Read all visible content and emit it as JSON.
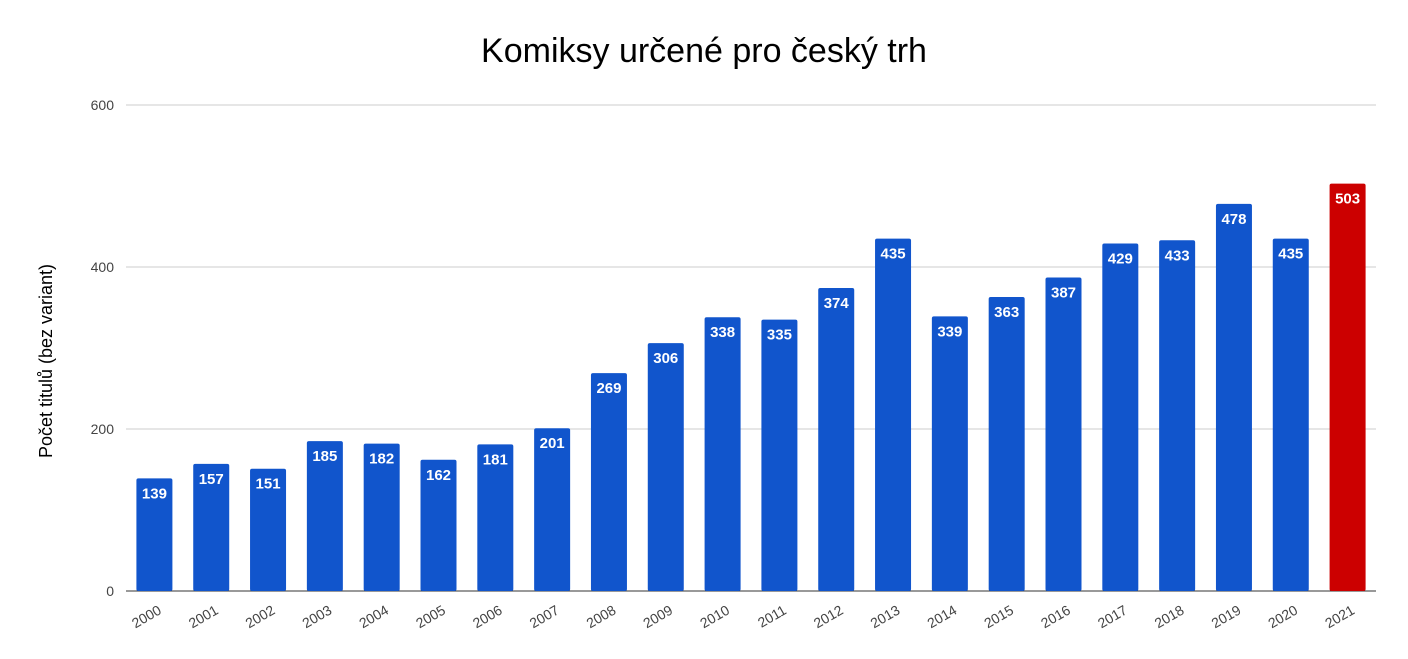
{
  "chart_data": {
    "type": "bar",
    "title": "Komiksy určené pro český trh",
    "xlabel": "",
    "ylabel": "Počet titulů (bez variant)",
    "ylim": [
      0,
      600
    ],
    "yticks": [
      0,
      200,
      400,
      600
    ],
    "grid": true,
    "legend": "none",
    "categories": [
      "2000",
      "2001",
      "2002",
      "2003",
      "2004",
      "2005",
      "2006",
      "2007",
      "2008",
      "2009",
      "2010",
      "2011",
      "2012",
      "2013",
      "2014",
      "2015",
      "2016",
      "2017",
      "2018",
      "2019",
      "2020",
      "2021"
    ],
    "values": [
      139,
      157,
      151,
      185,
      182,
      162,
      181,
      201,
      269,
      306,
      338,
      335,
      374,
      435,
      339,
      363,
      387,
      429,
      433,
      478,
      435,
      503
    ],
    "colors": {
      "default": "#1155cc",
      "highlight": "#cc0000",
      "highlight_category": "2021",
      "grid": "#cccccc",
      "axis": "#333333"
    }
  }
}
